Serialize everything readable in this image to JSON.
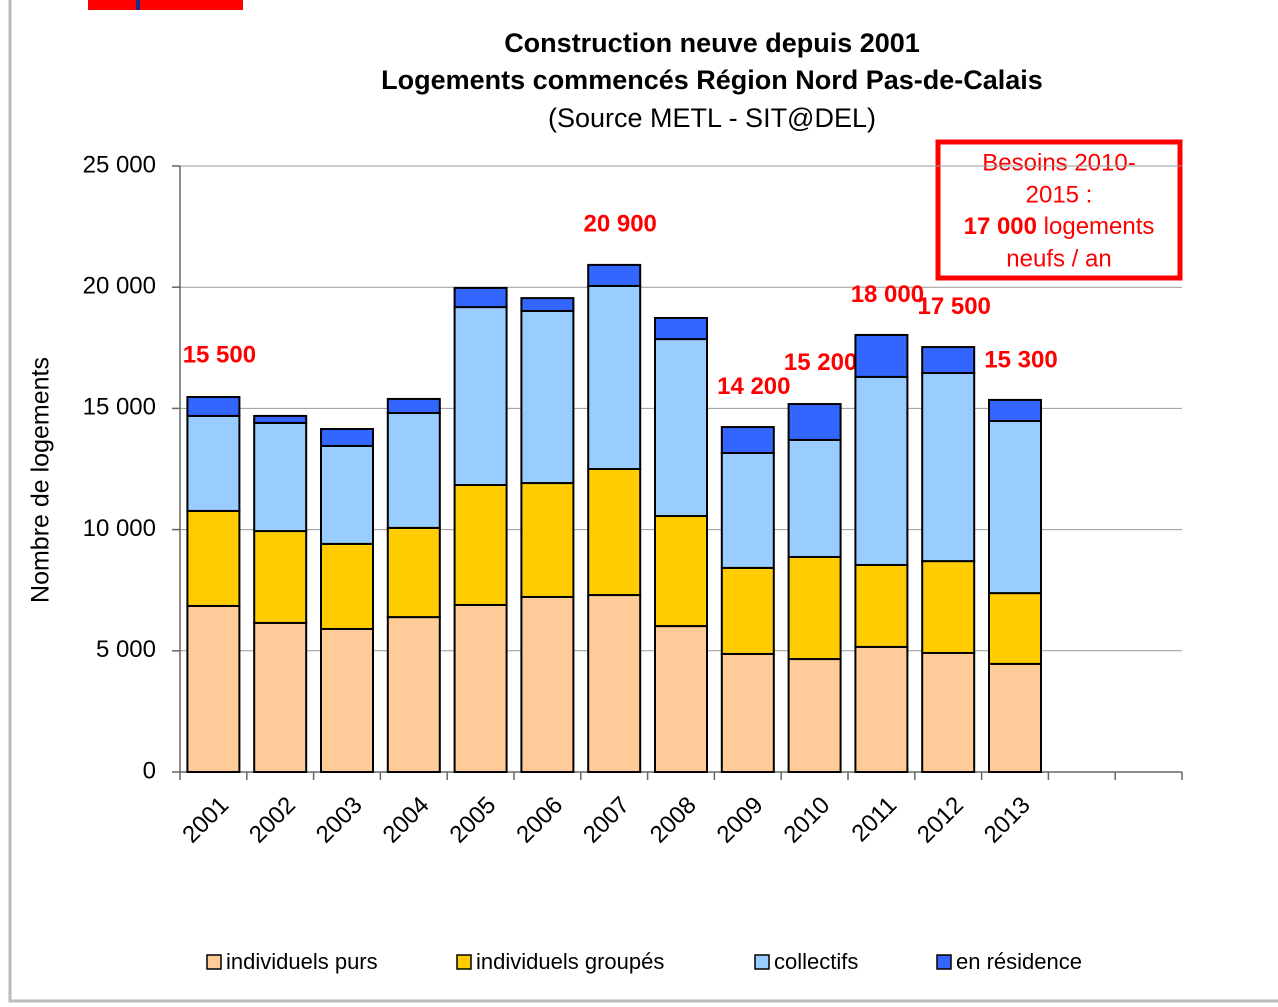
{
  "chart_data": {
    "type": "stacked_bar",
    "title": "Construction neuve depuis 2001",
    "subtitle": "Logements commencés Région Nord Pas-de-Calais",
    "source": "(Source METL - SIT@DEL)",
    "y_label": "Nombre de logements",
    "categories": [
      "2001",
      "2002",
      "2003",
      "2004",
      "2005",
      "2006",
      "2007",
      "2008",
      "2009",
      "2010",
      "2011",
      "2012",
      "2013",
      null,
      null
    ],
    "series": [
      {
        "name": "individuels purs",
        "color": "#FFCC99",
        "values": [
          6850,
          6150,
          5900,
          6390,
          6890,
          7220,
          7300,
          6020,
          4870,
          4660,
          5160,
          4910,
          4460,
          null,
          null
        ]
      },
      {
        "name": "individuels groupés",
        "color": "#FFCC00",
        "values": [
          3920,
          3790,
          3510,
          3680,
          4950,
          4700,
          5200,
          4540,
          3550,
          4210,
          3380,
          3790,
          2920,
          null,
          null
        ]
      },
      {
        "name": "collectifs",
        "color": "#99CCFF",
        "values": [
          3920,
          4460,
          4040,
          4740,
          7340,
          7100,
          7550,
          7300,
          4740,
          4830,
          7760,
          7760,
          7100,
          null,
          null
        ]
      },
      {
        "name": "en résidence",
        "color": "#3366FF",
        "values": [
          780,
          290,
          700,
          580,
          790,
          530,
          870,
          870,
          1070,
          1480,
          1730,
          1070,
          870,
          null,
          null
        ]
      }
    ],
    "totals": [
      15500,
      null,
      null,
      null,
      null,
      null,
      20900,
      null,
      14200,
      15200,
      18000,
      17500,
      15300,
      null,
      null
    ],
    "total_labels": [
      "15 500",
      null,
      null,
      null,
      null,
      null,
      "20 900",
      null,
      "14 200",
      "15 200",
      "18 000",
      "17 500",
      "15 300",
      null,
      null
    ],
    "ylim": [
      0,
      25000
    ],
    "yticks": [
      0,
      {
        "value": 5000,
        "label": "5 000"
      },
      {
        "value": 10000,
        "label": "10 000"
      },
      {
        "value": 15000,
        "label": "15 000"
      },
      {
        "value": 20000,
        "label": "20 000"
      },
      {
        "value": 25000,
        "label": "25 000"
      }
    ],
    "grid": true,
    "legend": "bottom",
    "annotation": {
      "line1": "Besoins 2010-",
      "line2": "2015 :",
      "highlight": "17 000",
      "line3_rest": " logements",
      "line4": "neufs / an"
    }
  }
}
